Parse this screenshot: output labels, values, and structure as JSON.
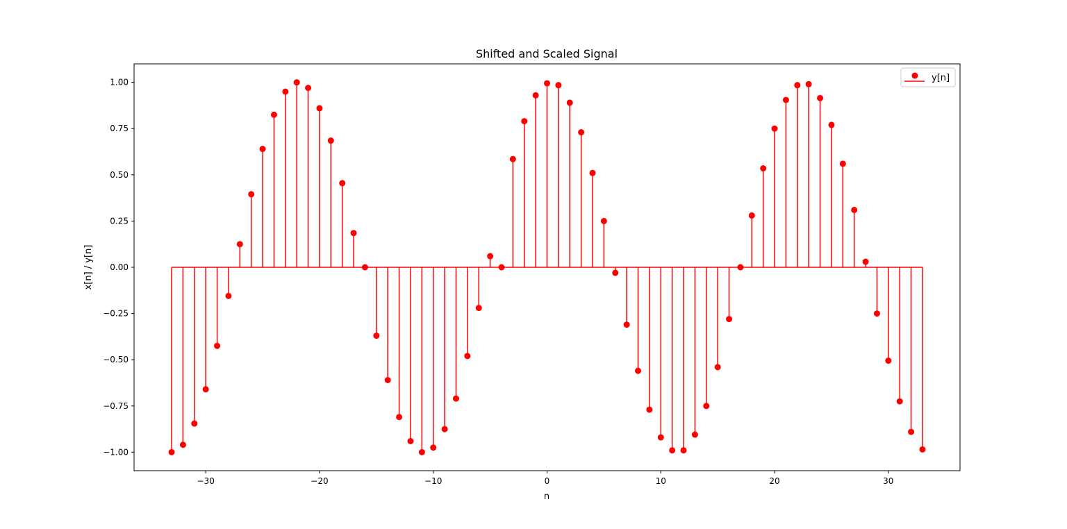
{
  "chart_data": {
    "type": "stem",
    "title": "Shifted and Scaled Signal",
    "xlabel": "n",
    "ylabel": "x[n] / y[n]",
    "xlim": [
      -36.3,
      36.3
    ],
    "ylim": [
      -1.1,
      1.1
    ],
    "xticks": [
      -30,
      -20,
      -10,
      0,
      10,
      20,
      30
    ],
    "xtick_labels": [
      "−30",
      "−20",
      "−10",
      "0",
      "10",
      "20",
      "30"
    ],
    "yticks": [
      1.0,
      0.75,
      0.5,
      0.25,
      0.0,
      -0.25,
      -0.5,
      -0.75,
      -1.0
    ],
    "ytick_labels": [
      "1.00",
      "0.75",
      "0.50",
      "0.25",
      "0.00",
      "−0.25",
      "−0.50",
      "−0.75",
      "−1.00"
    ],
    "grid": false,
    "legend_position": "top-right",
    "color": "#ff0000",
    "series": [
      {
        "name": "y[n]",
        "x": [
          -33,
          -32,
          -31,
          -30,
          -29,
          -28,
          -27,
          -26,
          -25,
          -24,
          -23,
          -22,
          -21,
          -20,
          -19,
          -18,
          -17,
          -16,
          -15,
          -14,
          -13,
          -12,
          -11,
          -10,
          -9,
          -8,
          -7,
          -6,
          -5,
          -4,
          -3,
          -2,
          -1,
          0,
          1,
          2,
          3,
          4,
          5,
          6,
          7,
          8,
          9,
          10,
          11,
          12,
          13,
          14,
          15,
          16,
          17,
          18,
          19,
          20,
          21,
          22,
          23,
          24,
          25,
          26,
          27,
          28,
          29,
          30,
          31,
          32,
          33
        ],
        "values": [
          -1.0,
          -0.96,
          -0.845,
          -0.66,
          -0.425,
          -0.155,
          0.125,
          0.395,
          0.64,
          0.825,
          0.95,
          1.0,
          0.97,
          0.86,
          0.685,
          0.455,
          0.185,
          0.0,
          -0.37,
          -0.61,
          -0.81,
          -0.94,
          -1.0,
          -0.975,
          -0.875,
          -0.71,
          -0.48,
          -0.22,
          0.06,
          0.0,
          0.585,
          0.79,
          0.93,
          0.995,
          0.985,
          0.89,
          0.73,
          0.51,
          0.25,
          -0.03,
          -0.31,
          -0.56,
          -0.77,
          -0.92,
          -0.99,
          -0.99,
          -0.905,
          -0.75,
          -0.54,
          -0.28,
          0.0,
          0.28,
          0.535,
          0.75,
          0.905,
          0.985,
          0.99,
          0.915,
          0.77,
          0.56,
          0.31,
          0.03,
          -0.25,
          -0.505,
          -0.725,
          -0.89,
          -0.985
        ]
      }
    ]
  }
}
